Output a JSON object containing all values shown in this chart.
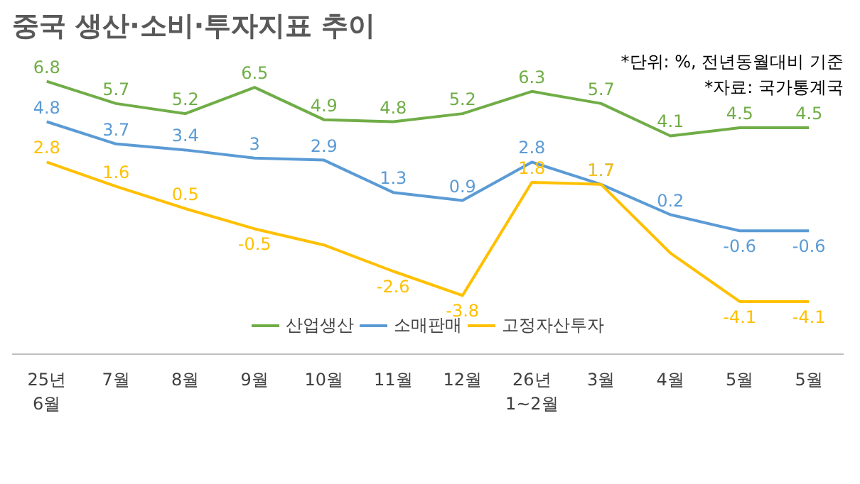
{
  "chart_data": {
    "type": "line",
    "title": "중국 생산·소비·투자지표 추이",
    "annotations": [
      "*단위: %, 전년동월대비 기준",
      "*자료: 국가통계국"
    ],
    "categories": [
      "25년\n6월",
      "7월",
      "8월",
      "9월",
      "10월",
      "11월",
      "12월",
      "26년\n1~2월",
      "3월",
      "4월",
      "5월",
      "5월"
    ],
    "series": [
      {
        "name": "산업생산",
        "color": "#70ad47",
        "values": [
          6.8,
          5.7,
          5.2,
          6.5,
          4.9,
          4.8,
          5.2,
          6.3,
          5.7,
          4.1,
          4.5,
          4.5
        ]
      },
      {
        "name": "소매판매",
        "color": "#5b9bd5",
        "values": [
          4.8,
          3.7,
          3.4,
          3,
          2.9,
          1.3,
          0.9,
          2.8,
          1.7,
          0.2,
          -0.6,
          -0.6
        ]
      },
      {
        "name": "고정자산투자",
        "color": "#ffc000",
        "values": [
          2.8,
          1.6,
          0.5,
          -0.5,
          -1.3,
          -2.6,
          -3.8,
          1.8,
          1.7,
          -1.7,
          -4.1,
          -4.1
        ],
        "value_labels": [
          "2.8",
          "1.6",
          "0.5",
          "-0.5",
          null,
          "-2.6",
          "-3.8",
          "1.8",
          "1.7",
          null,
          "-4.1",
          "-4.1"
        ]
      }
    ],
    "data_labels": true,
    "legend": "bottom",
    "grid": false,
    "marker": "none",
    "line_style": "solid"
  }
}
